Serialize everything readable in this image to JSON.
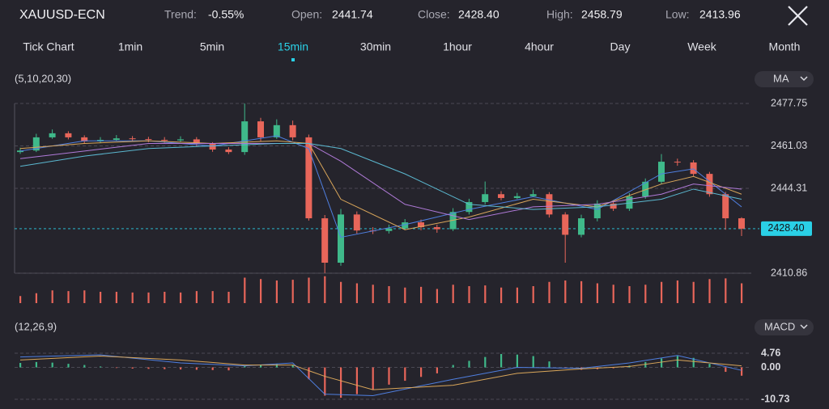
{
  "header": {
    "symbol": "XAUUSD-ECN",
    "trend_label": "Trend:",
    "trend": "-0.55%",
    "open_label": "Open:",
    "open": "2441.74",
    "close_label": "Close:",
    "close": "2428.40",
    "high_label": "High:",
    "high": "2458.79",
    "low_label": "Low:",
    "low": "2413.96"
  },
  "timeframes": [
    "Tick Chart",
    "1min",
    "5min",
    "15min",
    "30min",
    "1hour",
    "4hour",
    "Day",
    "Week",
    "Month"
  ],
  "active_timeframe": 3,
  "chart_data": [
    {
      "type": "candlestick",
      "label": "(5,10,20,30)",
      "indicator": "MA",
      "up_color": "#3fb98a",
      "down_color": "#e8665a",
      "ylim": [
        2410.86,
        2477.75
      ],
      "yticks": [
        2477.75,
        2461.03,
        2444.31,
        2410.86
      ],
      "last_price": {
        "value": 2428.4,
        "label": "2428.40"
      },
      "open": [
        2458.6,
        2459.2,
        2464.4,
        2466.0,
        2464.4,
        2462.8,
        2463.4,
        2464.0,
        2463.7,
        2463.4,
        2463.2,
        2463.6,
        2461.8,
        2459.6,
        2458.6,
        2470.7,
        2464.4,
        2469.2,
        2464.4,
        2432.5,
        2415.0,
        2434.0,
        2427.7,
        2427.5,
        2428.5,
        2430.9,
        2429.0,
        2428.2,
        2435.0,
        2438.9,
        2442.0,
        2440.5,
        2441.2,
        2442.0,
        2434.0,
        2426.0,
        2432.5,
        2438.3,
        2436.3,
        2441.1,
        2446.9,
        2454.8,
        2454.5,
        2450.0,
        2442.0,
        2432.5
      ],
      "high": [
        2460.3,
        2465.8,
        2467.5,
        2466.8,
        2465.2,
        2464.5,
        2465.3,
        2464.9,
        2464.6,
        2464.5,
        2464.8,
        2464.5,
        2462.5,
        2460.5,
        2477.7,
        2472.1,
        2471.5,
        2471.0,
        2465.5,
        2433.8,
        2436.2,
        2435.2,
        2429.0,
        2430.0,
        2432.2,
        2432.0,
        2430.0,
        2436.5,
        2440.2,
        2447.0,
        2443.2,
        2442.5,
        2443.8,
        2442.8,
        2434.9,
        2433.9,
        2439.6,
        2439.4,
        2442.4,
        2448.2,
        2457.8,
        2456.0,
        2455.4,
        2450.8,
        2442.9,
        2432.9
      ],
      "low": [
        2457.9,
        2458.6,
        2463.8,
        2463.6,
        2461.8,
        2462.1,
        2462.9,
        2462.8,
        2462.5,
        2462.2,
        2462.5,
        2461.0,
        2458.7,
        2457.8,
        2457.5,
        2462.7,
        2463.8,
        2463.2,
        2431.6,
        2410.9,
        2413.8,
        2426.5,
        2426.3,
        2426.5,
        2427.9,
        2427.8,
        2426.8,
        2427.5,
        2434.0,
        2438.0,
        2439.6,
        2440.1,
        2440.8,
        2432.8,
        2415.0,
        2425.0,
        2431.3,
        2435.4,
        2435.4,
        2440.2,
        2446.0,
        2453.2,
        2449.1,
        2441.0,
        2428.0,
        2425.5
      ],
      "close": [
        2459.2,
        2464.4,
        2466.0,
        2464.4,
        2462.8,
        2463.4,
        2464.0,
        2463.7,
        2463.4,
        2463.2,
        2463.6,
        2461.8,
        2459.6,
        2458.6,
        2470.7,
        2464.4,
        2469.2,
        2464.4,
        2432.5,
        2415.0,
        2434.0,
        2427.7,
        2427.5,
        2428.5,
        2430.9,
        2429.0,
        2428.2,
        2435.0,
        2438.9,
        2442.0,
        2440.5,
        2441.2,
        2442.0,
        2434.0,
        2426.0,
        2432.5,
        2438.3,
        2436.3,
        2441.1,
        2446.9,
        2454.8,
        2454.5,
        2450.0,
        2442.0,
        2432.5,
        2428.4
      ],
      "ma_x": [
        0,
        4,
        8,
        12,
        16,
        18,
        20,
        24,
        28,
        32,
        36,
        40,
        42,
        45
      ],
      "series": [
        {
          "color": "#4f7fe0",
          "values": [
            2459,
            2463,
            2463,
            2461,
            2465,
            2460,
            2425,
            2430,
            2436,
            2441,
            2436,
            2450,
            2452,
            2437
          ]
        },
        {
          "color": "#d9a65a",
          "values": [
            2460,
            2462,
            2463,
            2462,
            2463,
            2462,
            2440,
            2428,
            2433,
            2440,
            2437,
            2446,
            2449,
            2442
          ]
        },
        {
          "color": "#b07ad8",
          "values": [
            2456,
            2459,
            2462,
            2462,
            2462,
            2462,
            2455,
            2438,
            2432,
            2437,
            2438,
            2442,
            2446,
            2444
          ]
        },
        {
          "color": "#5bb8d0",
          "values": [
            2453,
            2457,
            2460,
            2461,
            2462,
            2462,
            2460,
            2450,
            2438,
            2436,
            2437,
            2440,
            2444,
            2440
          ]
        }
      ]
    },
    {
      "type": "bar",
      "color": "#e8665a",
      "ylim": [
        0,
        40
      ],
      "values": [
        10,
        14,
        18,
        17,
        18,
        16,
        16,
        15,
        15,
        16,
        15,
        17,
        17,
        16,
        36,
        34,
        32,
        33,
        36,
        38,
        30,
        28,
        26,
        24,
        22,
        23,
        20,
        26,
        24,
        25,
        22,
        22,
        24,
        30,
        32,
        31,
        28,
        26,
        24,
        26,
        30,
        32,
        30,
        34,
        35,
        28
      ]
    },
    {
      "type": "macd",
      "label": "(12,26,9)",
      "indicator": "MACD",
      "up_color": "#3fb98a",
      "down_color": "#e8665a",
      "ylim": [
        -10.73,
        4.76
      ],
      "yticks": [
        4.76,
        {
          "value": 0,
          "label": "0.00"
        },
        -10.73
      ],
      "histogram": [
        1.5,
        1.8,
        1.6,
        1.2,
        0.8,
        0.3,
        -0.2,
        -0.4,
        -0.5,
        -0.6,
        -0.7,
        -0.8,
        -0.9,
        -1.0,
        0.4,
        0.8,
        1.2,
        0.9,
        -4.0,
        -9.5,
        -10.2,
        -9.0,
        -7.5,
        -5.8,
        -4.5,
        -3.2,
        -2.0,
        0.8,
        2.2,
        3.5,
        4.5,
        4.3,
        3.8,
        2.0,
        -0.3,
        -0.8,
        -0.6,
        -0.3,
        0.6,
        1.8,
        3.0,
        3.8,
        3.2,
        1.2,
        -1.5,
        -2.8
      ],
      "line_x": [
        0,
        5,
        10,
        14,
        17,
        19,
        22,
        27,
        31,
        35,
        38,
        41,
        45
      ],
      "series": [
        {
          "color": "#4f7fe0",
          "values": [
            3.5,
            4.2,
            1.5,
            0.5,
            1.5,
            -9,
            -9.5,
            -4,
            0,
            -0.3,
            1.5,
            4.0,
            -1.0
          ]
        },
        {
          "color": "#d9a65a",
          "values": [
            2.5,
            3.8,
            2.5,
            0.8,
            0.8,
            -3,
            -7.5,
            -6,
            -2,
            -0.5,
            0.3,
            2.5,
            0.5
          ]
        }
      ]
    }
  ]
}
